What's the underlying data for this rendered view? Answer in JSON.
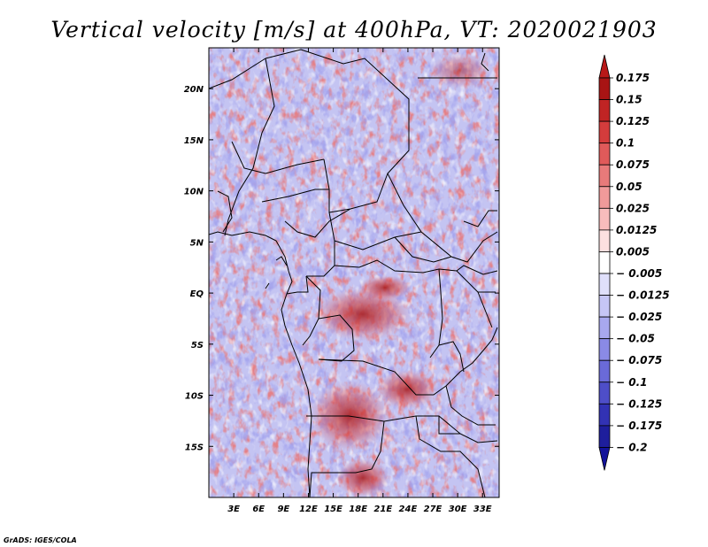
{
  "chart_data": {
    "type": "heatmap",
    "title": "Vertical velocity [m/s] at 400hPa, VT: 2020021903",
    "variable": "Vertical velocity",
    "units": "m/s",
    "level": "400hPa",
    "valid_time": "2020021903",
    "x_axis": {
      "label": "",
      "range": [
        0,
        35
      ],
      "ticks": [
        3,
        6,
        9,
        12,
        15,
        18,
        21,
        24,
        27,
        30,
        33
      ],
      "tick_labels": [
        "3E",
        "6E",
        "9E",
        "12E",
        "15E",
        "18E",
        "21E",
        "24E",
        "27E",
        "30E",
        "33E"
      ]
    },
    "y_axis": {
      "label": "",
      "range": [
        -20,
        24
      ],
      "ticks": [
        20,
        15,
        10,
        5,
        0,
        -5,
        -10,
        -15
      ],
      "tick_labels": [
        "20N",
        "15N",
        "10N",
        "5N",
        "EQ",
        "5S",
        "10S",
        "15S"
      ]
    },
    "colorbar": {
      "orientation": "vertical",
      "location": "right",
      "extend": "both",
      "levels": [
        0.175,
        0.15,
        0.125,
        0.1,
        0.075,
        0.05,
        0.025,
        0.0125,
        0.005,
        -0.005,
        -0.0125,
        -0.025,
        -0.05,
        -0.075,
        -0.1,
        -0.125,
        -0.175,
        -0.2
      ],
      "labels": [
        "0.175",
        "0.15",
        "0.125",
        "0.1",
        "0.075",
        "0.05",
        "0.025",
        "0.0125",
        "0.005",
        "− 0.005",
        "− 0.0125",
        "− 0.025",
        "− 0.05",
        "− 0.075",
        "− 0.1",
        "− 0.125",
        "− 0.175",
        "− 0.2"
      ],
      "colors": [
        "#8c0a0a",
        "#a81414",
        "#c02424",
        "#d43c3c",
        "#e05a5a",
        "#e87a7a",
        "#f09a9a",
        "#f8bcbc",
        "#fde0e0",
        "#ffffff",
        "#e0e0fb",
        "#c6c6f6",
        "#a8a8ef",
        "#8a8ae6",
        "#6a6ad8",
        "#4e4ec8",
        "#3232b4",
        "#1e1e9c",
        "#10107e"
      ],
      "top_arrow_color": "#b81818",
      "bottom_arrow_color": "#12129a"
    },
    "field_description": "Noisy mixed field of weak upward (red) and downward (blue) motion, strongest positive (dark red) values over central Africa near 0-15S, 15-25E"
  },
  "credit": "GrADS: IGES/COLA"
}
